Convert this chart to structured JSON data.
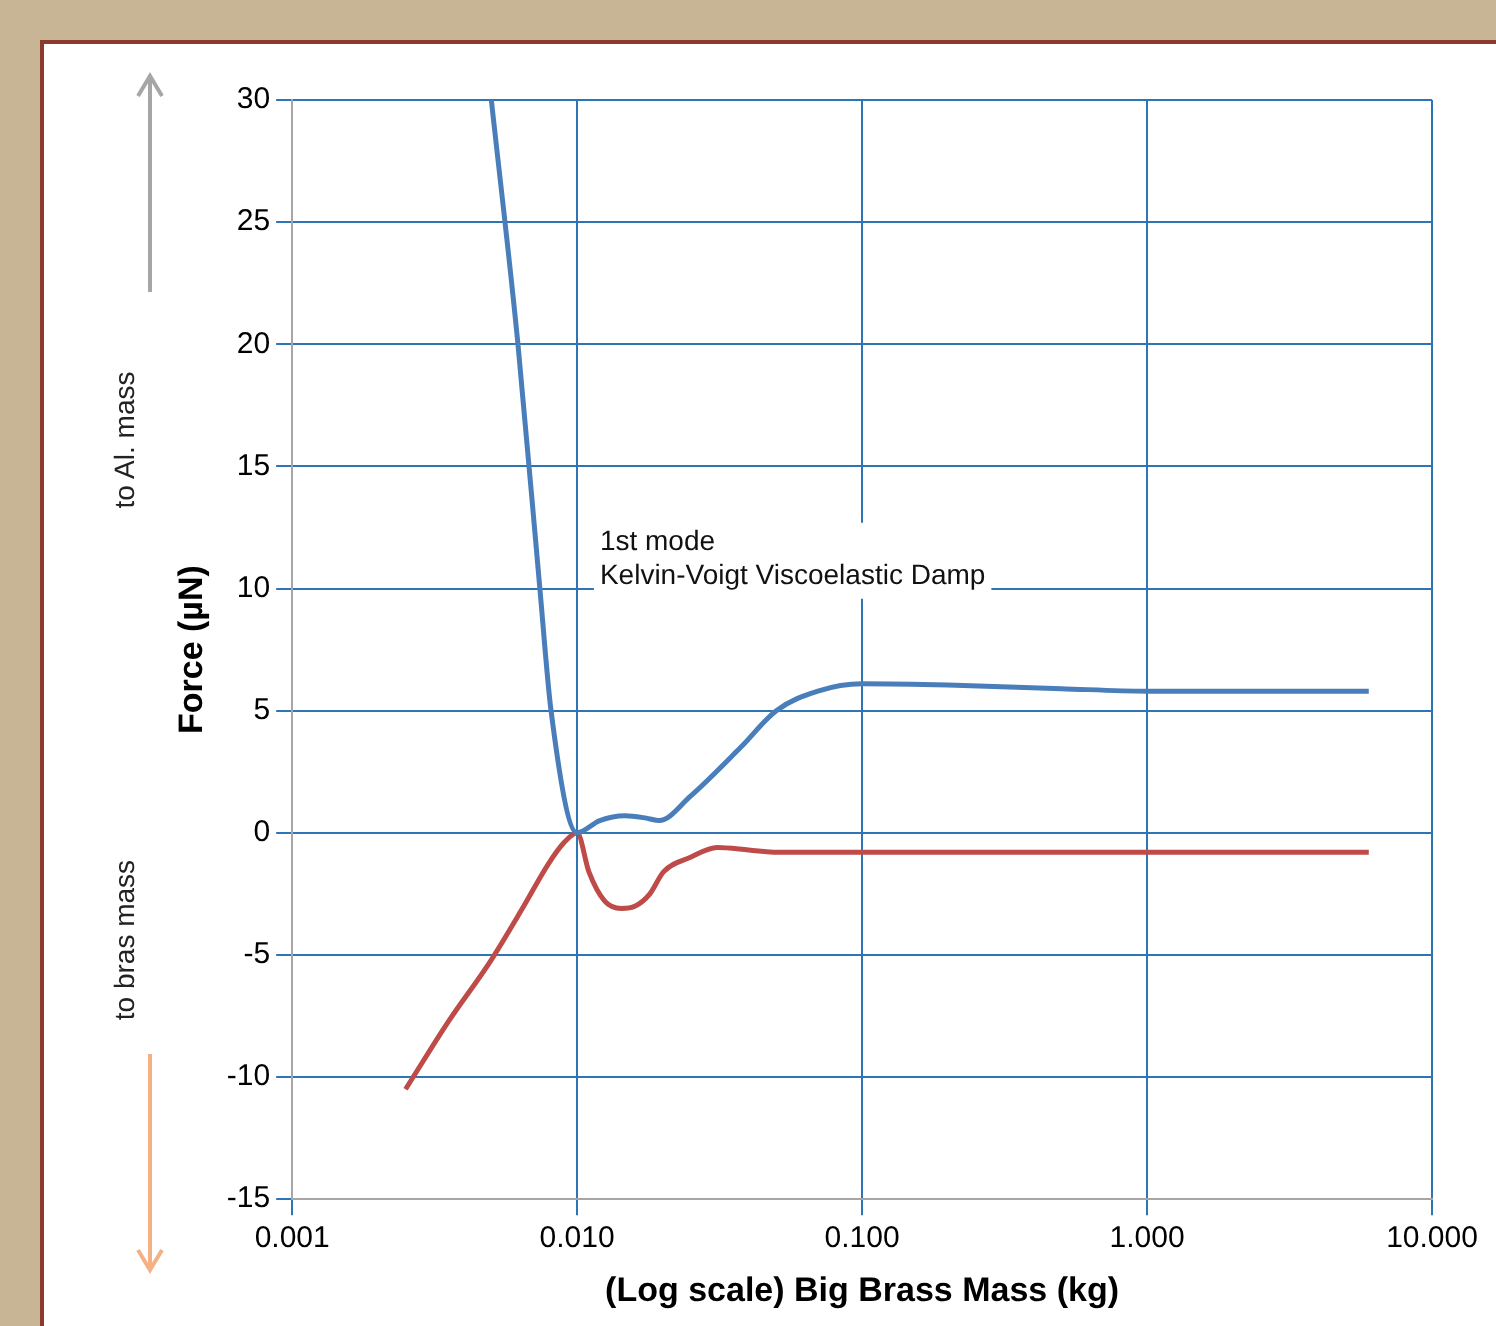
{
  "chart_data": {
    "type": "line",
    "xlabel": "(Log scale) Big Brass Mass (kg)",
    "ylabel": "Force (µN)",
    "log": "x",
    "grid": true,
    "legend": false,
    "marker": "none",
    "line_style": "solid",
    "xlim": [
      0.001,
      10
    ],
    "xticks": [
      {
        "value": 0.001,
        "label": "0.001"
      },
      {
        "value": 0.01,
        "label": "0.010"
      },
      {
        "value": 0.1,
        "label": "0.100"
      },
      {
        "value": 1,
        "label": "1.000"
      },
      {
        "value": 10,
        "label": "10.000"
      }
    ],
    "ylim": [
      -15,
      30
    ],
    "yticks": [
      -15,
      -10,
      -5,
      0,
      5,
      10,
      15,
      20,
      25,
      30
    ],
    "annotations": [
      "1st mode\nKelvin-Voigt Viscoelastic Damp",
      "to Al. mass",
      "to bras mass"
    ],
    "series": [
      {
        "color": "#4a7ebb",
        "x": [
          0.005,
          0.0062,
          0.0074,
          0.0081,
          0.01,
          0.012,
          0.0147,
          0.0175,
          0.0194,
          0.025,
          0.0375,
          0.05,
          0.07,
          0.1,
          0.2,
          0.5,
          1,
          3,
          6
        ],
        "values": [
          30,
          20,
          10,
          5,
          0,
          0.5,
          0.7,
          0.6,
          0.5,
          1.5,
          3.5,
          5,
          5.8,
          6.1,
          6.05,
          5.9,
          5.8,
          5.8,
          5.8
        ]
      },
      {
        "color": "#be4b48",
        "x": [
          0.0025,
          0.0035,
          0.005,
          0.0065,
          0.0079,
          0.009,
          0.01,
          0.011,
          0.0125,
          0.0143,
          0.016,
          0.018,
          0.0201,
          0.025,
          0.031,
          0.04,
          0.05,
          0.1,
          0.3,
          1,
          3,
          6
        ],
        "values": [
          -10.5,
          -7.8,
          -5.2,
          -3,
          -1.3,
          -0.4,
          0,
          -1.6,
          -2.8,
          -3.1,
          -3,
          -2.5,
          -1.6,
          -1,
          -0.6,
          -0.7,
          -0.8,
          -0.8,
          -0.8,
          -0.8,
          -0.8,
          -0.8
        ]
      }
    ]
  }
}
